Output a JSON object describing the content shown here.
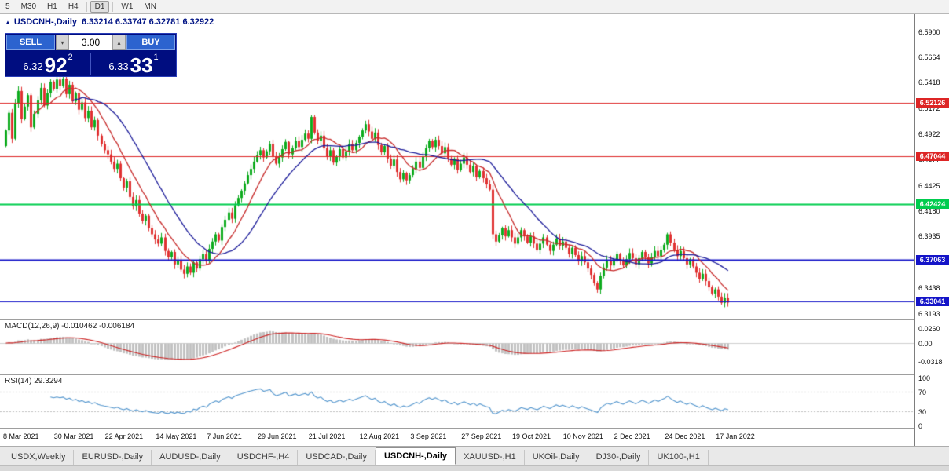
{
  "toolbar": {
    "timeframes": [
      "5",
      "M30",
      "H1",
      "H4",
      "D1",
      "W1",
      "MN"
    ],
    "active": "D1",
    "separators_after": [
      "H4",
      "D1"
    ]
  },
  "chart_header": {
    "toggle_icon": "▲",
    "symbol_title": "USDCNH-,Daily",
    "ohlc_values": "6.33214 6.33747 6.32781 6.32922"
  },
  "one_click": {
    "sell_label": "SELL",
    "buy_label": "BUY",
    "volume": "3.00",
    "spin_down": "▾",
    "spin_up": "▴",
    "sell_price_small": "6.32",
    "sell_price_big": "92",
    "sell_price_sup": "2",
    "buy_price_small": "6.33",
    "buy_price_big": "33",
    "buy_price_sup": "1"
  },
  "chart_data": {
    "type": "candlestick",
    "symbol": "USDCNH",
    "period": "Daily",
    "first_open": 6.48,
    "wick_scale": 0.0045,
    "colors": {
      "bull": "#0eab1e",
      "bear": "#e03232"
    },
    "layout": {
      "first_x": 6,
      "step": 4.05,
      "body_w": 3
    },
    "closes": [
      6.495,
      6.512,
      6.487,
      6.521,
      6.533,
      6.506,
      6.518,
      6.529,
      6.498,
      6.511,
      6.524,
      6.536,
      6.519,
      6.531,
      6.542,
      6.535,
      6.544,
      6.538,
      6.545,
      6.53,
      6.539,
      6.523,
      6.531,
      6.515,
      6.522,
      6.507,
      6.514,
      6.498,
      6.505,
      6.49,
      6.482,
      6.476,
      6.472,
      6.465,
      6.458,
      6.463,
      6.449,
      6.44,
      6.446,
      6.431,
      6.422,
      6.428,
      6.415,
      6.408,
      6.413,
      6.401,
      6.395,
      6.39,
      6.386,
      6.392,
      6.379,
      6.373,
      6.378,
      6.366,
      6.37,
      6.361,
      6.357,
      6.364,
      6.358,
      6.368,
      6.362,
      6.371,
      6.376,
      6.369,
      6.381,
      6.388,
      6.395,
      6.389,
      6.402,
      6.409,
      6.416,
      6.41,
      6.423,
      6.43,
      6.437,
      6.444,
      6.452,
      6.458,
      6.465,
      6.471,
      6.476,
      6.469,
      6.475,
      6.482,
      6.47,
      6.463,
      6.469,
      6.477,
      6.484,
      6.472,
      6.478,
      6.485,
      6.479,
      6.486,
      6.492,
      6.487,
      6.508,
      6.493,
      6.485,
      6.49,
      6.478,
      6.47,
      6.476,
      6.464,
      6.47,
      6.477,
      6.469,
      6.475,
      6.482,
      6.476,
      6.483,
      6.489,
      6.495,
      6.501,
      6.494,
      6.487,
      6.493,
      6.481,
      6.474,
      6.48,
      6.468,
      6.461,
      6.467,
      6.455,
      6.448,
      6.454,
      6.447,
      6.452,
      6.458,
      6.465,
      6.459,
      6.47,
      6.478,
      6.485,
      6.479,
      6.486,
      6.48,
      6.473,
      6.479,
      6.468,
      6.462,
      6.468,
      6.457,
      6.463,
      6.469,
      6.462,
      6.455,
      6.461,
      6.45,
      6.456,
      6.449,
      6.443,
      6.438,
      6.395,
      6.388,
      6.394,
      6.401,
      6.393,
      6.399,
      6.392,
      6.386,
      6.392,
      6.399,
      6.393,
      6.387,
      6.393,
      6.386,
      6.38,
      6.386,
      6.392,
      6.385,
      6.379,
      6.385,
      6.391,
      6.384,
      6.388,
      6.382,
      6.376,
      6.382,
      6.375,
      6.369,
      6.374,
      6.368,
      6.362,
      6.356,
      6.348,
      6.342,
      6.355,
      6.363,
      6.37,
      6.365,
      6.371,
      6.376,
      6.37,
      6.365,
      6.371,
      6.377,
      6.372,
      6.366,
      6.372,
      6.378,
      6.373,
      6.367,
      6.373,
      6.379,
      6.374,
      6.38,
      6.385,
      6.395,
      6.387,
      6.38,
      6.374,
      6.379,
      6.372,
      6.366,
      6.371,
      6.364,
      6.358,
      6.352,
      6.357,
      6.35,
      6.344,
      6.338,
      6.342,
      6.335,
      6.329,
      6.334,
      6.3292
    ],
    "y_axis": {
      "min": 6.313,
      "max": 6.607,
      "ticks": [
        {
          "value": 6.59,
          "label": "6.5900"
        },
        {
          "value": 6.5664,
          "label": "6.5664"
        },
        {
          "value": 6.5418,
          "label": "6.5418"
        },
        {
          "value": 6.5172,
          "label": "6.5172"
        },
        {
          "value": 6.4922,
          "label": "6.4922"
        },
        {
          "value": 6.4677,
          "label": "6.4677"
        },
        {
          "value": 6.4425,
          "label": "6.4425"
        },
        {
          "value": 6.418,
          "label": "6.4180"
        },
        {
          "value": 6.3935,
          "label": "6.3935"
        },
        {
          "value": 6.369,
          "label": "6.3690"
        },
        {
          "value": 6.3438,
          "label": "6.3438"
        },
        {
          "value": 6.3193,
          "label": "6.3193"
        }
      ]
    },
    "x_ticks": [
      {
        "index": 0,
        "label": "8 Mar 2021"
      },
      {
        "index": 16,
        "label": "30 Mar 2021"
      },
      {
        "index": 32,
        "label": "22 Apr 2021"
      },
      {
        "index": 48,
        "label": "14 May 2021"
      },
      {
        "index": 64,
        "label": "7 Jun 2021"
      },
      {
        "index": 80,
        "label": "29 Jun 2021"
      },
      {
        "index": 96,
        "label": "21 Jul 2021"
      },
      {
        "index": 112,
        "label": "12 Aug 2021"
      },
      {
        "index": 128,
        "label": "3 Sep 2021"
      },
      {
        "index": 144,
        "label": "27 Sep 2021"
      },
      {
        "index": 160,
        "label": "19 Oct 2021"
      },
      {
        "index": 176,
        "label": "10 Nov 2021"
      },
      {
        "index": 192,
        "label": "2 Dec 2021"
      },
      {
        "index": 208,
        "label": "24 Dec 2021"
      },
      {
        "index": 224,
        "label": "17 Jan 2022"
      }
    ],
    "hlines": [
      {
        "value": 6.52126,
        "label": "6.52126",
        "color": "#dd2525",
        "line_width": 1
      },
      {
        "value": 6.47044,
        "label": "6.47044",
        "color": "#dd2525",
        "line_width": 1
      },
      {
        "value": 6.42424,
        "label": "6.42424",
        "color": "#00cc4e",
        "line_width": 2
      },
      {
        "value": 6.37063,
        "label": "6.37063",
        "color": "#1414c8",
        "line_width": 2
      },
      {
        "value": 6.33041,
        "label": "6.33041",
        "color": "#1414c8",
        "line_width": 1
      }
    ],
    "indicators": {
      "ma_fast": {
        "period": 10,
        "color": "#c62828"
      },
      "ma_slow": {
        "period": 22,
        "color": "#1a1a99"
      },
      "macd": {
        "label": "MACD(12,26,9) -0.010462 -0.006184",
        "fast": 12,
        "slow": 26,
        "signal": 9,
        "hist_color": "#c2c2c2",
        "signal_color": "#cc2222",
        "range": [
          -0.055,
          0.04
        ],
        "ticks": [
          {
            "value": 0.026,
            "label": "0.0260"
          },
          {
            "value": 0,
            "label": "0.00"
          },
          {
            "value": -0.0318,
            "label": "-0.0318"
          }
        ]
      },
      "rsi": {
        "label": "RSI(14) 29.3294",
        "period": 14,
        "color": "#4f93cc",
        "range": [
          -5,
          105
        ],
        "levels": [
          70,
          30
        ],
        "ticks": [
          {
            "value": 100,
            "label": "100"
          },
          {
            "value": 70,
            "label": "70"
          },
          {
            "value": 30,
            "label": "30"
          },
          {
            "value": 0,
            "label": "0"
          }
        ]
      }
    }
  },
  "tabs": {
    "items": [
      {
        "label": "USDX,Weekly",
        "active": false
      },
      {
        "label": "EURUSD-,Daily",
        "active": false
      },
      {
        "label": "AUDUSD-,Daily",
        "active": false
      },
      {
        "label": "USDCHF-,H4",
        "active": false
      },
      {
        "label": "USDCAD-,Daily",
        "active": false
      },
      {
        "label": "USDCNH-,Daily",
        "active": true
      },
      {
        "label": "XAUUSD-,H1",
        "active": false
      },
      {
        "label": "UKOil-,Daily",
        "active": false
      },
      {
        "label": "DJ30-,Daily",
        "active": false
      },
      {
        "label": "UK100-,H1",
        "active": false
      }
    ]
  }
}
